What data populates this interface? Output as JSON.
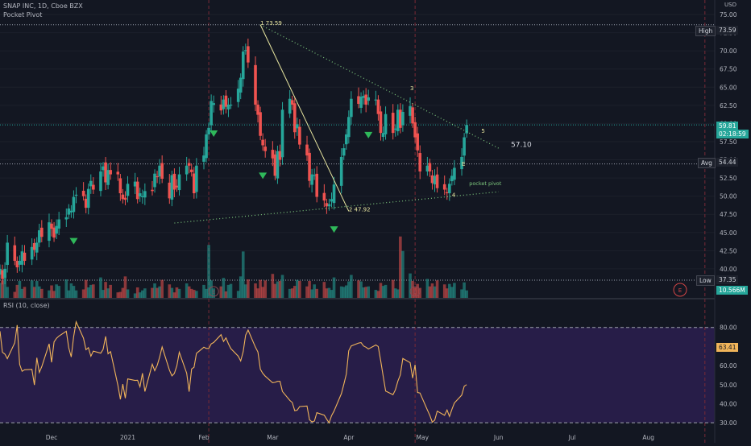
{
  "header": {
    "symbol_line": "SNAP INC, 1D, Cboe BZX",
    "indicator": "Pocket Pivot",
    "currency": "USD"
  },
  "rsi": {
    "title": "RSI (10, close)",
    "value": "63.41",
    "ticks": [
      "80.00",
      "70.00",
      "60.00",
      "50.00",
      "40.00",
      "30.00"
    ],
    "tick_values": [
      80,
      70,
      60,
      50,
      40,
      30
    ],
    "overbought": 80,
    "oversold": 30
  },
  "price_axis": {
    "ticks": [
      "75.00",
      "72.50",
      "70.00",
      "67.50",
      "65.00",
      "62.50",
      "60.00",
      "57.50",
      "55.00",
      "52.50",
      "50.00",
      "47.50",
      "45.00",
      "42.50",
      "40.00"
    ],
    "tick_values": [
      75,
      72.5,
      70,
      67.5,
      65,
      62.5,
      60,
      57.5,
      55,
      52.5,
      50,
      47.5,
      45,
      42.5,
      40
    ]
  },
  "labels": {
    "high_tag": "High",
    "high_value": "73.59",
    "last_price": "59.81",
    "countdown": "02:18:59",
    "avg_tag": "Avg",
    "avg_value": "54.44",
    "low_tag": "Low",
    "low_value": "37.35",
    "volume_value": "10.566M",
    "target_value": "57.10",
    "wave_1": "1 73.59",
    "wave_2": "2 47.92",
    "wave_3": "3",
    "wave_4": "4",
    "wave_5": "5",
    "wave_e": "E",
    "pivot_text": "pocket pivot",
    "earnings_marker": "E"
  },
  "time_axis": {
    "labels": [
      "Dec",
      "2021",
      "Feb",
      "Mar",
      "Apr",
      "May",
      "Jun",
      "Jul",
      "Aug"
    ]
  },
  "colors": {
    "up": "#26a69a",
    "down": "#ef5350",
    "rsi_line": "#f0b45a",
    "rsi_band": "#2a1e4d",
    "trend": "#7ec97e",
    "wave": "#e8e6a0",
    "high_line": "#9aa0ad"
  },
  "chart_data": {
    "type": "candlestick",
    "x_axis": "date",
    "x_range": [
      "2020-11-10",
      "2021-08-28"
    ],
    "y_range": [
      36,
      77
    ],
    "candles": {
      "start_date": "2020-11-10",
      "closes": [
        40.0,
        38.6,
        40.0,
        43.6,
        41.1,
        40.2,
        41.1,
        42.4,
        41.1,
        43.0,
        42.6,
        43.6,
        45.3,
        44.4,
        46.4,
        45.5,
        44.3,
        45.9,
        46.8,
        47.1,
        48.3,
        48.0,
        49.9,
        50.2,
        50.0,
        48.4,
        51.0,
        52.1,
        50.9,
        53.4,
        54.1,
        51.9,
        53.6,
        53.0,
        53.0,
        50.4,
        49.6,
        49.5,
        51.7,
        52.0,
        49.6,
        50.4,
        50.0,
        50.7,
        50.7,
        53.1,
        52.7,
        54.2,
        52.4,
        49.7,
        52.9,
        50.9,
        51.2,
        53.0,
        54.2,
        54.2,
        53.3,
        50.4,
        54.2,
        55.6,
        58.5,
        59.4,
        63.1,
        62.8,
        61.8,
        63.3,
        62.3,
        62.6,
        62.6,
        64.8,
        66.3,
        69.9,
        70.1,
        68.4,
        62.6,
        61.2,
        58.3,
        57.0,
        56.2,
        55.2,
        52.8,
        56.2,
        55.0,
        61.9,
        63.4,
        62.6,
        58.8,
        59.9,
        57.1,
        55.6,
        52.1,
        53.0,
        52.9,
        49.9,
        49.4,
        48.6,
        48.9,
        49.6,
        51.6,
        55.4,
        56.6,
        58.5,
        60.9,
        63.4,
        62.7,
        63.7,
        63.8,
        62.6,
        63.6,
        63.3,
        61.3,
        58.7,
        58.7,
        61.3,
        58.7,
        59.3,
        61.9,
        59.4,
        61.6,
        62.4,
        60.0,
        58.1,
        56.3,
        53.4,
        54.2,
        53.4,
        51.8,
        52.8,
        51.1,
        50.9,
        50.4,
        51.7,
        52.8,
        53.9,
        55.4,
        58.1,
        59.8
      ],
      "volume_ratio": [
        0.3,
        0.35,
        0.45,
        0.22,
        0.12,
        0.26,
        0.34,
        0.18,
        0.22,
        0.35,
        0.22,
        0.34,
        0.23,
        0.18,
        0.15,
        0.25,
        0.14,
        0.27,
        0.24,
        0.37,
        0.15,
        0.29,
        0.24,
        0.15,
        0.17,
        0.36,
        0.21,
        0.26,
        0.27,
        0.41,
        0.16,
        0.32,
        0.19,
        0.26,
        0.11,
        0.12,
        0.2,
        0.43,
        0.17,
        0.09,
        0.21,
        0.11,
        0.15,
        0.19,
        0.2,
        0.29,
        0.2,
        0.23,
        0.36,
        0.27,
        0.2,
        0.11,
        0.21,
        0.18,
        0.29,
        0.23,
        0.18,
        0.16,
        0.14,
        0.26,
        0.18,
        1.06,
        0.35,
        0.19,
        0.23,
        0.4,
        0.13,
        0.26,
        0.28,
        0.14,
        0.43,
        0.93,
        0.27,
        0.37,
        0.29,
        0.19,
        0.36,
        0.22,
        0.35,
        0.48,
        0.28,
        0.33,
        0.34,
        0.46,
        0.18,
        0.19,
        0.24,
        0.36,
        0.34,
        0.23,
        0.34,
        0.17,
        0.27,
        0.18,
        0.32,
        0.19,
        0.2,
        0.16,
        0.41,
        0.23,
        0.22,
        0.25,
        0.33,
        0.46,
        0.35,
        0.33,
        0.21,
        0.22,
        0.23,
        0.16,
        0.14,
        0.3,
        0.24,
        0.26,
        0.36,
        0.19,
        0.17,
        1.23,
        0.94,
        0.49,
        0.34,
        0.21,
        0.28,
        0.2,
        0.38,
        0.23,
        0.29,
        0.23,
        0.35,
        0.27,
        0.19,
        0.28,
        0.22,
        0.3,
        0.17,
        0.31,
        0.15
      ],
      "pivot_days": [
        "2020-12-10",
        "2021-02-05",
        "2021-02-25",
        "2021-03-26",
        "2021-04-09",
        "2021-05-24"
      ]
    },
    "rsi_series": {
      "start_date": "2020-11-10",
      "values": [
        78.0,
        67.0,
        66.0,
        63.6,
        71.9,
        81.2,
        60.6,
        57.0,
        57.8,
        58.0,
        49.8,
        64.1,
        56.4,
        59.4,
        71.4,
        61.7,
        72.4,
        74.3,
        75.5,
        78.0,
        69.3,
        64.5,
        75.2,
        82.9,
        74.4,
        68.3,
        69.4,
        64.9,
        67.6,
        66.5,
        68.5,
        75.3,
        66.2,
        67.3,
        49.7,
        42.3,
        50.3,
        42.9,
        53.0,
        52.2,
        52.3,
        48.9,
        56.0,
        46.4,
        60.7,
        57.3,
        60.1,
        64.4,
        69.8,
        57.6,
        54.6,
        55.9,
        59.9,
        67.0,
        56.0,
        46.3,
        58.2,
        59.1,
        66.4,
        69.6,
        69.0,
        69.0,
        71.4,
        72.1,
        76.2,
        72.6,
        74.5,
        71.4,
        68.9,
        64.9,
        62.4,
        67.3,
        75.9,
        78.6,
        69.6,
        67.1,
        58.1,
        55.9,
        54.4,
        51.0,
        51.2,
        51.7,
        51.7,
        46.4,
        41.7,
        40.6,
        36.3,
        36.6,
        38.5,
        38.8,
        31.6,
        30.5,
        30.9,
        35.3,
        34.0,
        31.9,
        30.0,
        33.8,
        36.1,
        45.3,
        50.2,
        55.5,
        67.8,
        70.3,
        71.8,
        72.0,
        70.3,
        69.6,
        68.7,
        70.8,
        70.0,
        62.4,
        54.5,
        46.6,
        44.7,
        47.3,
        51.9,
        55.1,
        63.7,
        61.5,
        53.4,
        60.4,
        45.9,
        45.6,
        36.7,
        33.9,
        30.3,
        31.4,
        36.1,
        33.9,
        36.7,
        33.3,
        37.1,
        40.4,
        44.5,
        49.2,
        50.0,
        59.2,
        63.4
      ]
    },
    "volume_last": "10.566M",
    "annotations": [
      {
        "text": "1 73.59",
        "date": "2021-02-24",
        "price": 73.59
      },
      {
        "text": "2 47.92",
        "date": "2021-04-01",
        "price": 47.92
      },
      {
        "text": "3",
        "date": "2021-04-26",
        "price": 64.6
      },
      {
        "text": "4",
        "date": "2021-05-13",
        "price": 49.9
      },
      {
        "text": "5",
        "date": "2021-05-25",
        "price": 58.7
      },
      {
        "text": "E",
        "date": "2021-05-17",
        "price": 54.2
      },
      {
        "text": "pocket pivot",
        "date": "2021-05-20",
        "price": 51.5
      }
    ],
    "trend_lines": [
      {
        "from": {
          "date": "2021-02-24",
          "price": 73.59
        },
        "to": {
          "date": "2021-06-01",
          "price": 56.6
        }
      },
      {
        "from": {
          "date": "2021-01-20",
          "price": 46.3
        },
        "to": {
          "date": "2021-06-01",
          "price": 50.6
        }
      }
    ],
    "wave_lines": [
      {
        "from": {
          "date": "2021-02-24",
          "price": 73.59
        },
        "to": {
          "date": "2021-04-01",
          "price": 47.92
        }
      }
    ],
    "high_line": 73.59,
    "last_price": 59.81,
    "avg": 54.44,
    "low": 37.35,
    "target": 57.1,
    "session_breaks": [
      "2021-02-03",
      "2021-04-28",
      "2021-08-24"
    ]
  }
}
